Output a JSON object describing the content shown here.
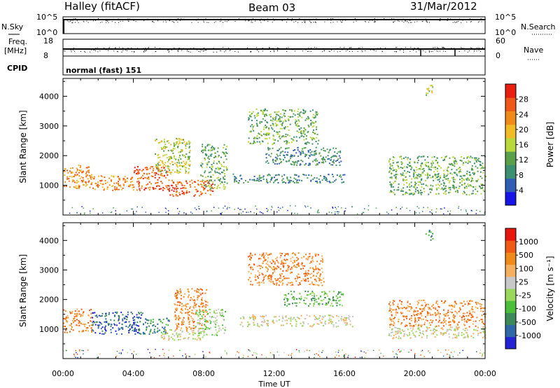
{
  "header": {
    "station": "Halley (fitACF)",
    "beam": "Beam 03",
    "date": "31/Mar/2012"
  },
  "aux_panels": {
    "left_labels": {
      "nsky": "N.Sky",
      "freq_line1": "Freq.",
      "freq_line2": "[MHz]",
      "cpid": "CPID"
    },
    "right_labels": {
      "nsearch": "N.Search",
      "nave": "Nave"
    },
    "nsky_ticks": [
      "10^5",
      "10^0"
    ],
    "nsearch_ticks": [
      "10^5",
      "10^0"
    ],
    "freq_ticks": [
      "18",
      "8"
    ],
    "nave_ticks": [
      "60",
      "0"
    ],
    "cpid_text": "normal (fast) 151"
  },
  "chart_data": [
    {
      "type": "heatmap",
      "title": "",
      "xlabel": "Time UT",
      "ylabel": "Slant Range [km]",
      "x_ticks": [
        "00:00",
        "04:00",
        "08:00",
        "12:00",
        "16:00",
        "20:00",
        "00:00"
      ],
      "xlim_hours": [
        0,
        24
      ],
      "y_ticks": [
        1000,
        2000,
        3000,
        4000
      ],
      "ylim": [
        0,
        4600
      ],
      "colorbar": {
        "label": "Power [dB]",
        "ticks": [
          4,
          8,
          12,
          16,
          20,
          24,
          28
        ],
        "range": [
          0,
          32
        ],
        "colors": [
          "#1515e8",
          "#2f5fb5",
          "#3c8f70",
          "#5a9f4a",
          "#b9d93b",
          "#f0bb24",
          "#f08a18",
          "#f0581a",
          "#e81e0f"
        ]
      },
      "regions": [
        {
          "t0": 0.0,
          "t1": 1.6,
          "r0": 900,
          "r1": 1700,
          "level": 24
        },
        {
          "t0": 1.6,
          "t1": 4.0,
          "r0": 850,
          "r1": 1350,
          "level": 22
        },
        {
          "t0": 4.0,
          "t1": 6.0,
          "r0": 850,
          "r1": 1650,
          "level": 25
        },
        {
          "t0": 5.2,
          "t1": 7.2,
          "r0": 1400,
          "r1": 2600,
          "level": 17
        },
        {
          "t0": 6.0,
          "t1": 8.5,
          "r0": 650,
          "r1": 1200,
          "level": 25
        },
        {
          "t0": 7.8,
          "t1": 9.3,
          "r0": 900,
          "r1": 2400,
          "level": 13
        },
        {
          "t0": 9.5,
          "t1": 16.0,
          "r0": 1100,
          "r1": 1400,
          "level": 8
        },
        {
          "t0": 10.5,
          "t1": 14.5,
          "r0": 2400,
          "r1": 3600,
          "level": 14
        },
        {
          "t0": 11.5,
          "t1": 15.8,
          "r0": 1700,
          "r1": 2300,
          "level": 10
        },
        {
          "t0": 18.5,
          "t1": 24.0,
          "r0": 700,
          "r1": 2000,
          "level": 14
        },
        {
          "t0": 20.6,
          "t1": 21.0,
          "r0": 4000,
          "r1": 4400,
          "level": 15
        }
      ]
    },
    {
      "type": "heatmap",
      "title": "",
      "xlabel": "Time UT",
      "ylabel": "Slant Range [km]",
      "x_ticks": [
        "00:00",
        "04:00",
        "08:00",
        "12:00",
        "16:00",
        "20:00",
        "00:00"
      ],
      "xlim_hours": [
        0,
        24
      ],
      "y_ticks": [
        1000,
        2000,
        3000,
        4000
      ],
      "ylim": [
        0,
        4600
      ],
      "colorbar": {
        "label": "Velocity [m s⁻¹]",
        "ticks": [
          "1000",
          "500",
          "100",
          "25",
          "-25",
          "-100",
          "-500",
          "-1000"
        ],
        "colors": [
          "#2323d6",
          "#2f68a8",
          "#3c8a5a",
          "#4cbf3a",
          "#9ad85c",
          "#c8c8c8",
          "#f4b05e",
          "#f08a18",
          "#f05a14",
          "#e8170e"
        ]
      },
      "regions": [
        {
          "t0": 0.0,
          "t1": 1.6,
          "r0": 900,
          "r1": 1700,
          "level": 7
        },
        {
          "t0": 1.6,
          "t1": 4.5,
          "r0": 850,
          "r1": 1600,
          "level": 1
        },
        {
          "t0": 4.5,
          "t1": 6.0,
          "r0": 850,
          "r1": 1400,
          "level": 2
        },
        {
          "t0": 5.5,
          "t1": 8.0,
          "r0": 650,
          "r1": 1000,
          "level": 5
        },
        {
          "t0": 6.3,
          "t1": 8.2,
          "r0": 1000,
          "r1": 2400,
          "level": 7
        },
        {
          "t0": 7.5,
          "t1": 9.2,
          "r0": 800,
          "r1": 1700,
          "level": 4
        },
        {
          "t0": 10.0,
          "t1": 16.5,
          "r0": 1100,
          "r1": 1500,
          "level": 5
        },
        {
          "t0": 10.5,
          "t1": 14.8,
          "r0": 2500,
          "r1": 3600,
          "level": 7
        },
        {
          "t0": 12.5,
          "t1": 16.0,
          "r0": 1800,
          "r1": 2300,
          "level": 3
        },
        {
          "t0": 18.5,
          "t1": 24.0,
          "r0": 1100,
          "r1": 2000,
          "level": 7
        },
        {
          "t0": 18.5,
          "t1": 24.0,
          "r0": 700,
          "r1": 1100,
          "level": 5
        },
        {
          "t0": 20.6,
          "t1": 21.0,
          "r0": 4000,
          "r1": 4400,
          "level": 2
        }
      ]
    }
  ]
}
